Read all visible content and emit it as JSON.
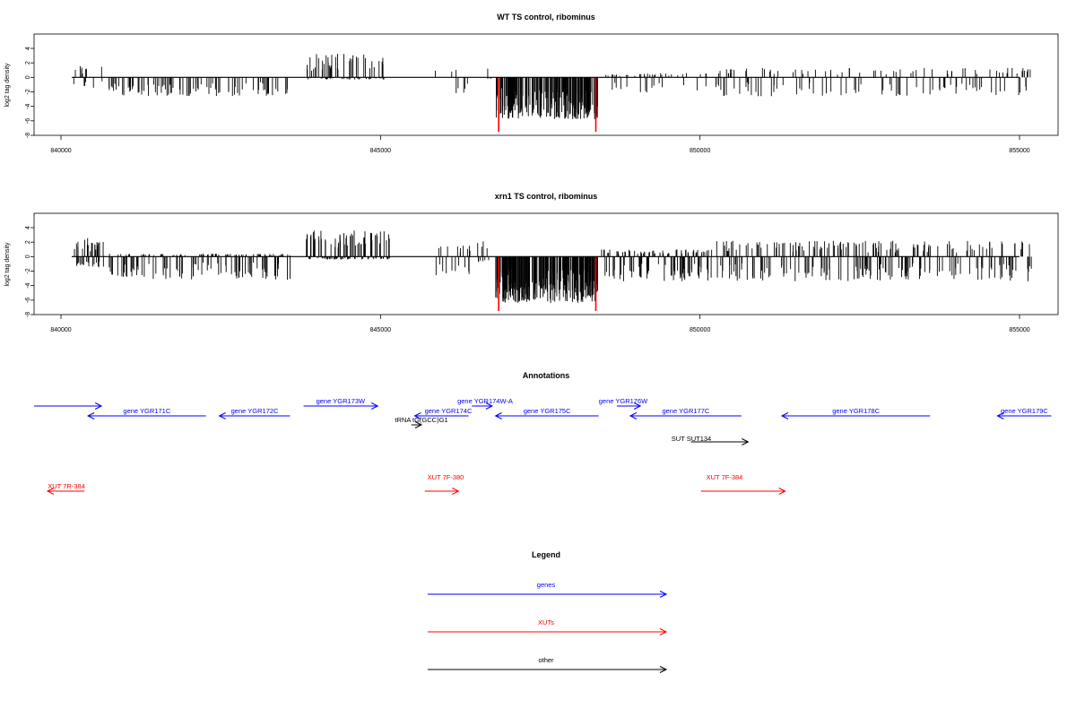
{
  "chart_data": [
    {
      "type": "bar",
      "title": "WT TS control, ribominus",
      "ylabel": "log2 tag density",
      "xlim": [
        840000,
        855000
      ],
      "ylim": [
        -8,
        4
      ],
      "x_ticks": [
        "840000",
        "845000",
        "850000",
        "855000"
      ],
      "y_ticks": [
        "4",
        "2",
        "0",
        "-2",
        "-4",
        "-6",
        "-8"
      ],
      "baseline_color": "#000000",
      "bar_color": "#000000",
      "highlight_color": "#ff0000",
      "highlight_x": [
        846850,
        848370
      ],
      "highlight_y": -7.5,
      "segments": [
        {
          "from": 840180,
          "to": 840700,
          "pos": 1.6,
          "neg": -1.5,
          "density": 14
        },
        {
          "from": 840750,
          "to": 843600,
          "pos": 0.2,
          "neg": -2.6,
          "density": 90
        },
        {
          "from": 843830,
          "to": 845100,
          "pos": 3.3,
          "neg": -0.3,
          "density": 75
        },
        {
          "from": 845850,
          "to": 846400,
          "pos": 1.2,
          "neg": -2.6,
          "density": 8
        },
        {
          "from": 846650,
          "to": 846780,
          "pos": 1.4,
          "neg": -0.2,
          "density": 3
        },
        {
          "from": 846800,
          "to": 848420,
          "pos": 0.1,
          "neg": -5.8,
          "density": 200
        },
        {
          "from": 848500,
          "to": 850200,
          "pos": 0.6,
          "neg": -2.1,
          "density": 45
        },
        {
          "from": 850250,
          "to": 855200,
          "pos": 1.3,
          "neg": -2.6,
          "density": 140
        }
      ]
    },
    {
      "type": "bar",
      "title": "xrn1 TS control, ribominus",
      "ylabel": "log2 tag density",
      "xlim": [
        840000,
        855000
      ],
      "ylim": [
        -8,
        4
      ],
      "x_ticks": [
        "840000",
        "845000",
        "850000",
        "855000"
      ],
      "y_ticks": [
        "4",
        "2",
        "0",
        "-2",
        "-4",
        "-6",
        "-8"
      ],
      "baseline_color": "#000000",
      "bar_color": "#000000",
      "highlight_color": "#ff0000",
      "highlight_x": [
        846850,
        848370
      ],
      "highlight_y": -7.5,
      "segments": [
        {
          "from": 840180,
          "to": 840700,
          "pos": 2.6,
          "neg": -1.5,
          "density": 40
        },
        {
          "from": 840750,
          "to": 843600,
          "pos": 0.4,
          "neg": -3.2,
          "density": 170
        },
        {
          "from": 843830,
          "to": 845150,
          "pos": 3.6,
          "neg": -0.4,
          "density": 120
        },
        {
          "from": 845750,
          "to": 846400,
          "pos": 1.5,
          "neg": -2.6,
          "density": 20
        },
        {
          "from": 846500,
          "to": 846800,
          "pos": 2.2,
          "neg": -0.8,
          "density": 10
        },
        {
          "from": 846800,
          "to": 848420,
          "pos": 0.1,
          "neg": -6.4,
          "density": 280
        },
        {
          "from": 848450,
          "to": 850200,
          "pos": 1.0,
          "neg": -3.4,
          "density": 120
        },
        {
          "from": 850250,
          "to": 855200,
          "pos": 2.2,
          "neg": -3.4,
          "density": 260
        }
      ]
    }
  ],
  "annotations": {
    "title": "Annotations",
    "features": [
      {
        "label": "",
        "start": 840000,
        "end": 841000,
        "strand": "+",
        "row": 1,
        "color": "#0000ff"
      },
      {
        "label": "gene YGR171C",
        "start": 840800,
        "end": 842550,
        "strand": "-",
        "row": 2,
        "color": "#0000ff"
      },
      {
        "label": "gene YGR172C",
        "start": 842750,
        "end": 843800,
        "strand": "-",
        "row": 2,
        "color": "#0000ff"
      },
      {
        "label": "gene YGR173W",
        "start": 844000,
        "end": 845100,
        "strand": "+",
        "row": 1,
        "color": "#0000ff"
      },
      {
        "label": "gene YGR174W-A",
        "start": 846500,
        "end": 846800,
        "strand": "+",
        "row": 0,
        "color": "#0000ff"
      },
      {
        "label": "gene YGR174C",
        "start": 845650,
        "end": 846450,
        "strand": "-",
        "row": 2,
        "color": "#0000ff"
      },
      {
        "label": "gene YGR175C",
        "start": 846850,
        "end": 848380,
        "strand": "-",
        "row": 2,
        "color": "#0000ff"
      },
      {
        "label": "gene YGR176W",
        "start": 848650,
        "end": 849000,
        "strand": "+",
        "row": 1,
        "color": "#0000ff"
      },
      {
        "label": "gene YGR177C",
        "start": 848850,
        "end": 850500,
        "strand": "-",
        "row": 2,
        "color": "#0000ff"
      },
      {
        "label": "gene YGR178C",
        "start": 851100,
        "end": 853300,
        "strand": "-",
        "row": 2,
        "color": "#0000ff"
      },
      {
        "label": "gene YGR179C",
        "start": 854300,
        "end": 855100,
        "strand": "-",
        "row": 2,
        "color": "#0000ff"
      },
      {
        "label": "tRNA tG(GCC)G1",
        "start": 845600,
        "end": 845750,
        "strand": "+",
        "row": 3,
        "color": "#000000"
      },
      {
        "label": "SUT SUT134",
        "start": 849750,
        "end": 850600,
        "strand": "+",
        "row": 4,
        "color": "#000000"
      },
      {
        "label": "XUT 7R-384",
        "start": 840200,
        "end": 840750,
        "strand": "-",
        "row": 5,
        "color": "#ff0000"
      },
      {
        "label": "XUT 7F-380",
        "start": 845800,
        "end": 846300,
        "strand": "+",
        "row": 5,
        "color": "#ff0000"
      },
      {
        "label": "XUT 7F-384",
        "start": 849900,
        "end": 851150,
        "strand": "+",
        "row": 5,
        "color": "#ff0000"
      }
    ]
  },
  "legend": {
    "title": "Legend",
    "items": [
      {
        "label": "genes",
        "color": "#0000ff"
      },
      {
        "label": "XUTs",
        "color": "#ff0000"
      },
      {
        "label": "other",
        "color": "#000000"
      }
    ]
  }
}
